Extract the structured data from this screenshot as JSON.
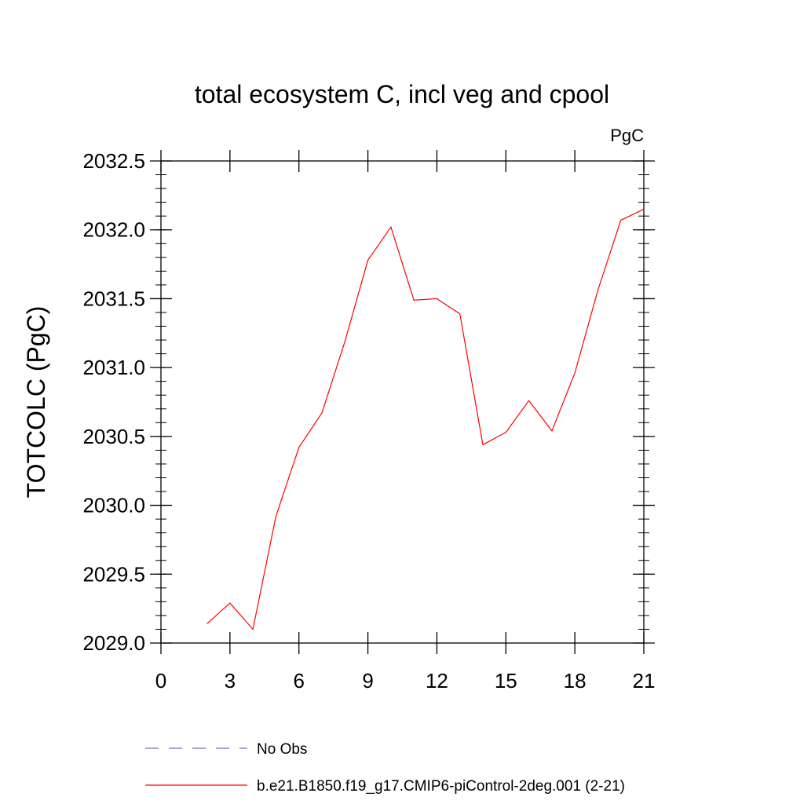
{
  "chart_data": {
    "type": "line",
    "title": "total ecosystem C, incl veg and cpool",
    "units_label": "PgC",
    "xlabel": "",
    "ylabel": "TOTCOLC  (PgC)",
    "xlim": [
      0,
      21
    ],
    "ylim": [
      2029.0,
      2032.5
    ],
    "x_ticks": [
      0,
      3,
      6,
      9,
      12,
      15,
      18,
      21
    ],
    "x_tick_labels": [
      "0",
      "3",
      "6",
      "9",
      "12",
      "15",
      "18",
      "21"
    ],
    "y_ticks": [
      2029.0,
      2029.5,
      2030.0,
      2030.5,
      2031.0,
      2031.5,
      2032.0,
      2032.5
    ],
    "y_tick_labels": [
      "2029.0",
      "2029.5",
      "2030.0",
      "2030.5",
      "2031.0",
      "2031.5",
      "2032.0",
      "2032.5"
    ],
    "grid": false,
    "legend_position": "bottom",
    "series": [
      {
        "name": "b.e21.B1850.f19_g17.CMIP6-piControl-2deg.001 (2-21)",
        "color": "#ff0000",
        "style": "solid",
        "x": [
          2,
          3,
          4,
          5,
          6,
          7,
          8,
          9,
          10,
          11,
          12,
          13,
          14,
          15,
          16,
          17,
          18,
          19,
          20,
          21
        ],
        "y": [
          2029.14,
          2029.29,
          2029.1,
          2029.92,
          2030.42,
          2030.67,
          2031.19,
          2031.78,
          2032.02,
          2031.49,
          2031.5,
          2031.39,
          2030.44,
          2030.53,
          2030.76,
          2030.54,
          2030.96,
          2031.56,
          2032.07,
          2032.15
        ]
      }
    ],
    "legend": [
      {
        "label": "No Obs",
        "color": "#6f6fd8",
        "style": "dashed"
      },
      {
        "label": "b.e21.B1850.f19_g17.CMIP6-piControl-2deg.001 (2-21)",
        "color": "#ff0000",
        "style": "solid"
      }
    ]
  }
}
